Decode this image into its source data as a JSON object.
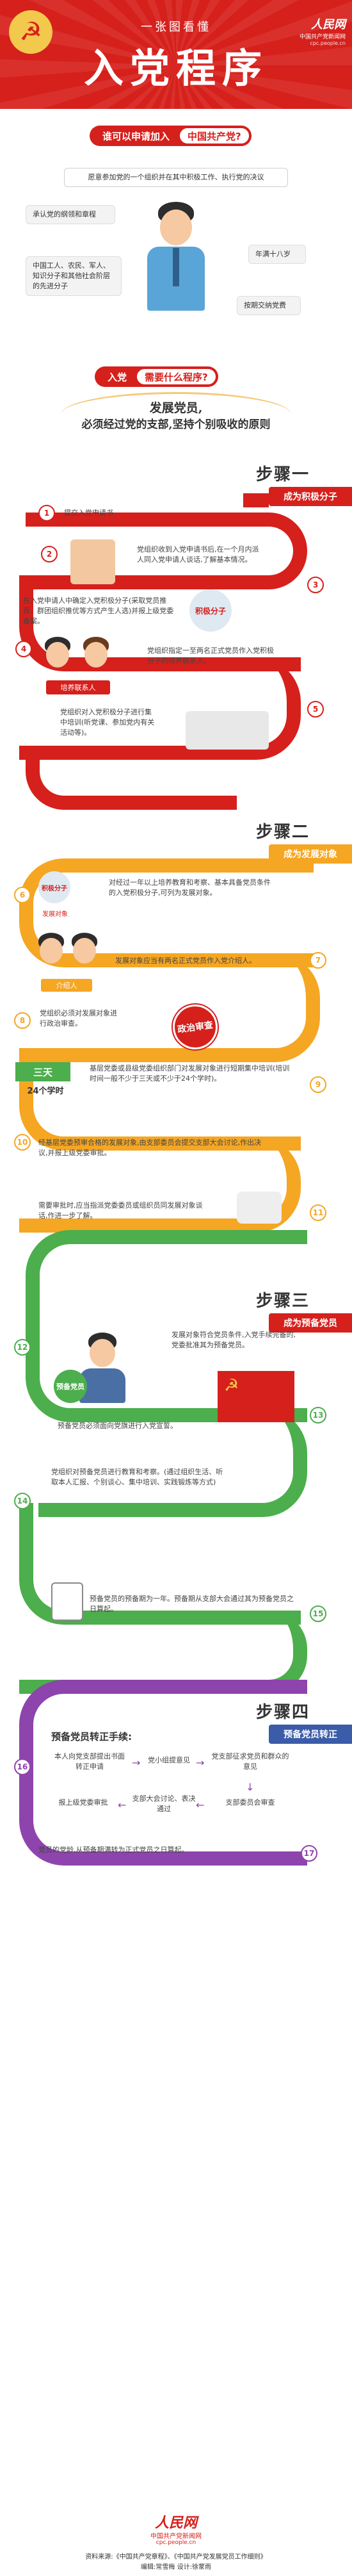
{
  "header": {
    "subtitle": "一张图看懂",
    "title": "入党程序",
    "emblem_glyph": "☭",
    "logo": {
      "name": "人民网",
      "line2": "中国共产党新闻网",
      "line3": "cpc.people.cn"
    }
  },
  "who": {
    "label_a": "谁可以申请加入",
    "label_b": "中国共产党?",
    "conditions": [
      "愿意参加党的一个组织并在其中积极工作、执行党的决议",
      "承认党的纲领和章程",
      "年满十八岁",
      "中国工人、农民、军人、知识分子和其他社会阶层的先进分子",
      "按期交纳党费"
    ]
  },
  "need": {
    "label_a": "入党",
    "label_b": "需要什么程序?",
    "principle_line1": "发展党员,",
    "principle_line2": "必须经过党的支部,坚持个别吸收的原则"
  },
  "step1": {
    "title": "步骤一",
    "tag": "成为积极分子",
    "items": [
      {
        "n": "1",
        "text": "提交入党申请书"
      },
      {
        "n": "2",
        "text": "党组织收到入党申请书后,在一个月内派人同入党申请人谈话,了解基本情况。"
      },
      {
        "n": "3",
        "text": "在入党申请人中确定入党积极分子(采取党员推荐、群团组织推优等方式产生人选)并报上级党委备案。"
      },
      {
        "n": "4",
        "text": "党组织指定一至两名正式党员作入党积极分子的培养联系人。"
      },
      {
        "n": "5",
        "text": "党组织对入党积极分子进行集中培训(听党课、参加党内有关活动等)。"
      }
    ],
    "badge_activist": "积极分子",
    "badge_contact": "培养联系人"
  },
  "step2": {
    "title": "步骤二",
    "tag": "成为发展对象",
    "items": [
      {
        "n": "6",
        "text": "对经过一年以上培养教育和考察、基本具备党员条件的入党积极分子,可列为发展对象。"
      },
      {
        "n": "7",
        "text": "发展对象应当有两名正式党员作入党介绍人。"
      },
      {
        "n": "8",
        "text": "党组织必须对发展对象进行政治审查。"
      },
      {
        "n": "9",
        "text": "基层党委或县级党委组织部门对发展对象进行短期集中培训(培训时间一般不少于三天或不少于24个学时)。"
      },
      {
        "n": "10",
        "text": "经基层党委预审合格的发展对象,由支部委员会提交支部大会讨论,作出决议,并报上级党委审批。"
      },
      {
        "n": "11",
        "text": "需要审批时,应当指派党委委员或组织员同发展对象谈话,作进一步了解。"
      }
    ],
    "badge_activist": "积极分子",
    "badge_target": "发展对象",
    "badge_introducer": "介绍人",
    "badge_review": "政治审查",
    "days_a": "三天",
    "days_b": "24个学时"
  },
  "step3": {
    "title": "步骤三",
    "tag": "成为预备党员",
    "items": [
      {
        "n": "12",
        "text": "发展对象符合党员条件,入党手续完备的,党委批准其为预备党员。"
      },
      {
        "n": "13",
        "text": "预备党员必须面向党旗进行入党宣誓。"
      },
      {
        "n": "14",
        "text": "党组织对预备党员进行教育和考察。(通过组织生活、听取本人汇报、个别谈心、集中培训、实践锻炼等方式)"
      },
      {
        "n": "15",
        "text": "预备党员的预备期为一年。预备期从支部大会通过其为预备党员之日算起。"
      }
    ],
    "badge_probationary": "预备党员"
  },
  "step4": {
    "title": "步骤四",
    "tag": "预备党员转正",
    "procedure_title": "预备党员转正手续:",
    "flow": [
      "本人向党支部提出书面转正申请",
      "党小组提意见",
      "党支部征求党员和群众的意见",
      "支部委员会审查",
      "支部大会讨论、表决通过",
      "报上级党委审批"
    ],
    "items": [
      {
        "n": "16",
        "text": ""
      },
      {
        "n": "17",
        "text": "党员的党龄,从预备期满转为正式党员之日算起。"
      }
    ]
  },
  "footer": {
    "logo_name": "人民网",
    "logo_line2": "中国共产党新闻网",
    "logo_line3": "cpc.people.cn",
    "sources": "资料来源:《中国共产党章程》、《中国共产党发展党员工作细则》",
    "credits": "编辑:常雪梅        设计:徐蒙雨"
  },
  "colors": {
    "red": "#d6201c",
    "orange": "#f5a623",
    "green": "#4cae4c",
    "purple": "#8e44ad",
    "blue": "#3b8fd6"
  }
}
